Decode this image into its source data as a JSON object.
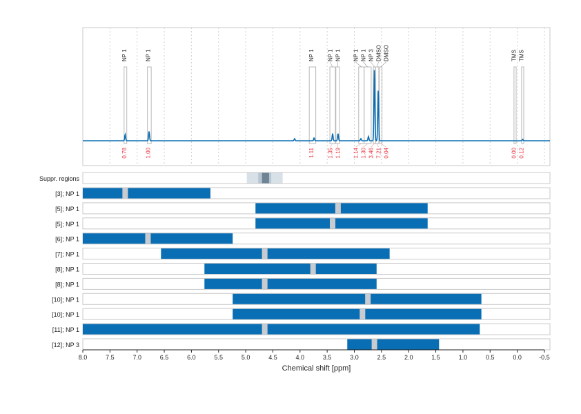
{
  "chart_data": {
    "type": "nmr-spectrum-with-range-bars",
    "xlabel": "Chemical shift [ppm]",
    "xlim": [
      8.0,
      -0.6
    ],
    "x_ticks": [
      "8.0",
      "7.5",
      "7.0",
      "6.5",
      "6.0",
      "5.5",
      "5.0",
      "4.5",
      "4.0",
      "3.5",
      "3.0",
      "2.5",
      "2.0",
      "1.5",
      "1.0",
      "0.5",
      "0.0",
      "-0.5"
    ],
    "grid": "dotted vertical every 0.5 ppm",
    "colors": {
      "spectrum": "#0a6eb4",
      "bar": "#0a6eb4",
      "bar_gap": "#c8ccd0",
      "integral_text": "#e8323c",
      "region_box": "#b8b8b8",
      "suppr_light": "#d8e0e8",
      "suppr_mid": "#b8c6d2",
      "suppr_dark": "#6f8494"
    },
    "spectrum_peaks": [
      {
        "ppm": 7.22,
        "intensity": 0.09
      },
      {
        "ppm": 6.78,
        "intensity": 0.13
      },
      {
        "ppm": 4.1,
        "intensity": 0.03
      },
      {
        "ppm": 3.74,
        "intensity": 0.04
      },
      {
        "ppm": 3.4,
        "intensity": 0.1
      },
      {
        "ppm": 3.3,
        "intensity": 0.1
      },
      {
        "ppm": 2.88,
        "intensity": 0.03
      },
      {
        "ppm": 2.74,
        "intensity": 0.06
      },
      {
        "ppm": 2.63,
        "intensity": 1.0
      },
      {
        "ppm": 2.56,
        "intensity": 0.71
      },
      {
        "ppm": -0.1,
        "intensity": 0.02
      }
    ],
    "regions": [
      {
        "label": "NP 1",
        "from": 7.24,
        "to": 7.19,
        "integral": "0.78"
      },
      {
        "label": "NP 1",
        "from": 6.81,
        "to": 6.74,
        "integral": "1.00"
      },
      {
        "label": "NP 1",
        "from": 3.83,
        "to": 3.71,
        "integral": "1.11"
      },
      {
        "label": "NP 1",
        "from": 3.45,
        "to": 3.35,
        "integral": "1.35"
      },
      {
        "label": "NP 1",
        "from": 3.34,
        "to": 3.27,
        "integral": "1.19"
      },
      {
        "label": "NP 1",
        "from": 2.92,
        "to": 2.82,
        "integral": "1.14"
      },
      {
        "label": "NP 1",
        "from": 2.82,
        "to": 2.69,
        "integral": "1.30"
      },
      {
        "label": "NP 3",
        "from": 2.65,
        "to": 2.61,
        "integral": "3.46"
      },
      {
        "label": "DMSO",
        "from": 2.61,
        "to": 2.55,
        "integral": "7.21"
      },
      {
        "label": "DMSO",
        "from": 2.54,
        "to": 2.49,
        "integral": "0.04"
      },
      {
        "label": "TMS",
        "from": 0.06,
        "to": 0.02,
        "integral": "0.00"
      },
      {
        "label": "TMS",
        "from": -0.08,
        "to": -0.12,
        "integral": "0.12"
      }
    ],
    "suppressed": {
      "label": "Suppr. regions",
      "outer": [
        4.98,
        4.32
      ],
      "mid": [
        4.77,
        4.53
      ],
      "inner": [
        4.7,
        4.57
      ]
    },
    "bars": [
      {
        "label": "[3]; NP 1",
        "from": 8.0,
        "to": 5.65,
        "gap": 7.22
      },
      {
        "label": "[5]; NP 1",
        "from": 4.82,
        "to": 1.65,
        "gap": 3.3
      },
      {
        "label": "[5]; NP 1",
        "from": 4.82,
        "to": 1.65,
        "gap": 3.4
      },
      {
        "label": "[6]; NP 1",
        "from": 8.0,
        "to": 5.24,
        "gap": 6.8
      },
      {
        "label": "[7]; NP 1",
        "from": 6.56,
        "to": 2.35,
        "gap": 4.65
      },
      {
        "label": "[8]; NP 1",
        "from": 5.76,
        "to": 2.59,
        "gap": 3.76
      },
      {
        "label": "[8]; NP 1",
        "from": 5.76,
        "to": 2.59,
        "gap": 4.65
      },
      {
        "label": "[10]; NP 1",
        "from": 5.24,
        "to": 0.66,
        "gap": 2.75
      },
      {
        "label": "[10]; NP 1",
        "from": 5.24,
        "to": 0.66,
        "gap": 2.85
      },
      {
        "label": "[11]; NP 1",
        "from": 8.0,
        "to": 0.69,
        "gap": 4.65
      },
      {
        "label": "[12]; NP 3",
        "from": 3.13,
        "to": 1.44,
        "gap": 2.63
      }
    ]
  }
}
